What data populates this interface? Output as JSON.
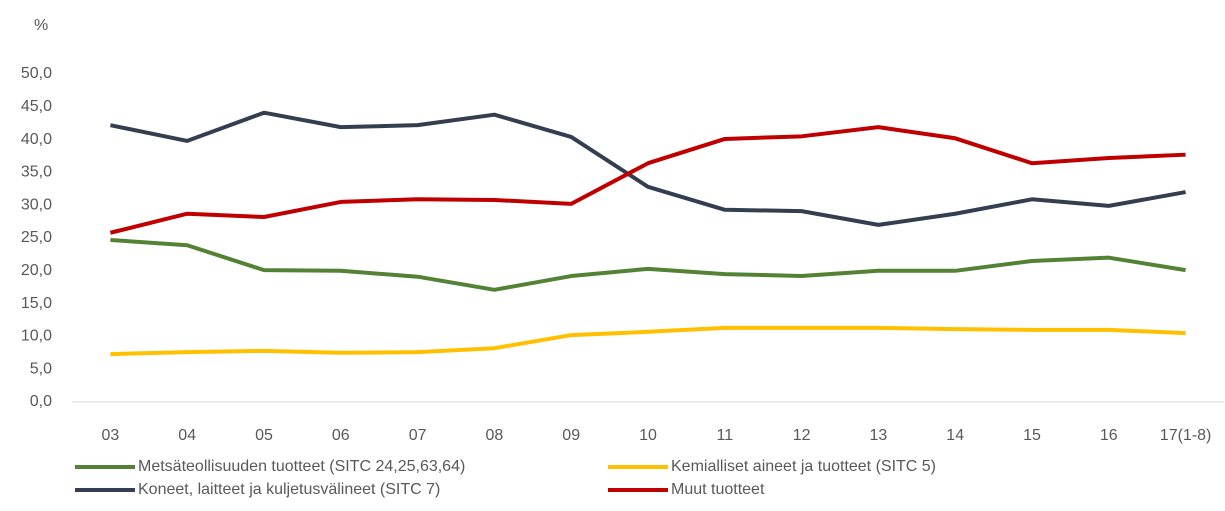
{
  "chart_data": {
    "type": "line",
    "title": "%",
    "categories": [
      "03",
      "04",
      "05",
      "06",
      "07",
      "08",
      "09",
      "10",
      "11",
      "12",
      "13",
      "14",
      "15",
      "16",
      "17(1-8)"
    ],
    "series": [
      {
        "name": "Metsäteollisuuden tuotteet (SITC 24,25,63,64)",
        "color": "#548235",
        "values": [
          24.7,
          23.9,
          20.1,
          20.0,
          19.1,
          17.1,
          19.2,
          20.3,
          19.5,
          19.2,
          20.0,
          20.0,
          21.5,
          22.0,
          20.1
        ]
      },
      {
        "name": "Kemialliset aineet ja tuotteet (SITC 5)",
        "color": "#ffc000",
        "values": [
          7.3,
          7.6,
          7.8,
          7.5,
          7.6,
          8.2,
          10.2,
          10.7,
          11.3,
          11.3,
          11.3,
          11.1,
          11.0,
          11.0,
          10.5
        ]
      },
      {
        "name": "Koneet, laitteet ja kuljetusvälineet (SITC 7)",
        "color": "#333f50",
        "values": [
          42.2,
          39.8,
          44.1,
          41.9,
          42.2,
          43.8,
          40.4,
          32.8,
          29.3,
          29.1,
          27.0,
          28.7,
          30.9,
          29.9,
          32.0
        ]
      },
      {
        "name": "Muut tuotteet",
        "color": "#c00000",
        "values": [
          25.8,
          28.7,
          28.2,
          30.5,
          30.9,
          30.8,
          30.2,
          36.4,
          40.1,
          40.5,
          41.9,
          40.2,
          36.4,
          37.2,
          37.7
        ]
      }
    ],
    "ylim": [
      0,
      50
    ],
    "yticks": [
      {
        "value": 0,
        "label": "0,0"
      },
      {
        "value": 5,
        "label": "5,0"
      },
      {
        "value": 10,
        "label": "10,0"
      },
      {
        "value": 15,
        "label": "15,0"
      },
      {
        "value": 20,
        "label": "20,0"
      },
      {
        "value": 25,
        "label": "25,0"
      },
      {
        "value": 30,
        "label": "30,0"
      },
      {
        "value": 35,
        "label": "35,0"
      },
      {
        "value": 40,
        "label": "40,0"
      },
      {
        "value": 45,
        "label": "45,0"
      },
      {
        "value": 50,
        "label": "50,0"
      }
    ],
    "grid": false
  }
}
